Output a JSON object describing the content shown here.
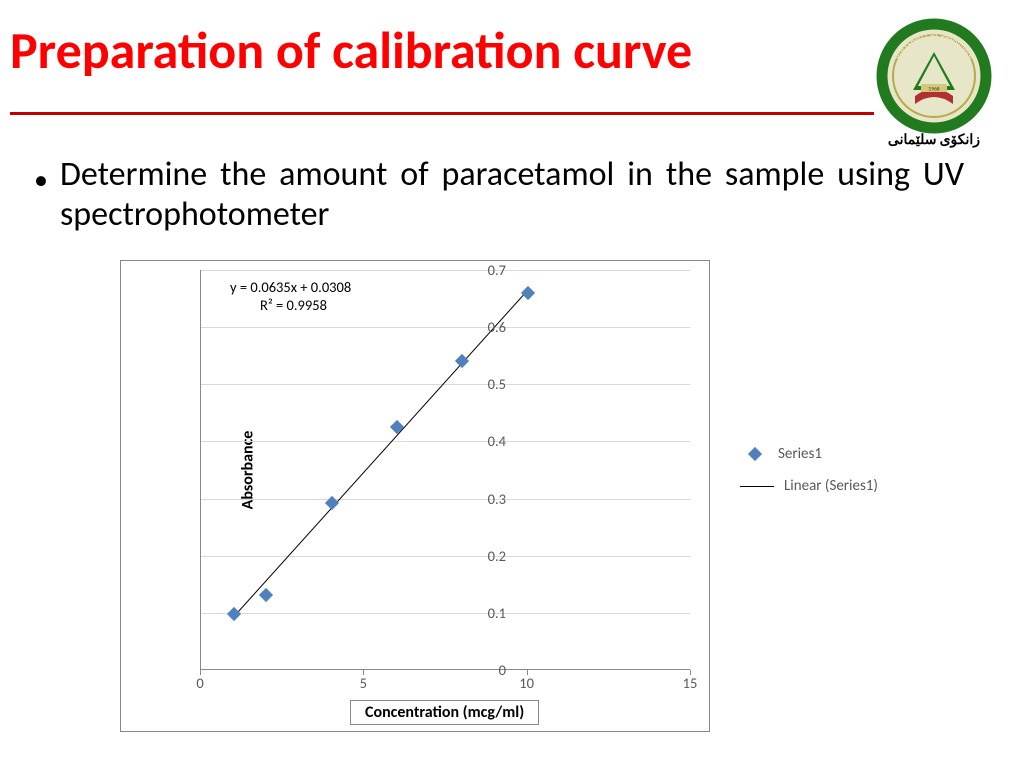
{
  "title": "Preparation of calibration curve",
  "title_color": "#ff0000",
  "hr_color": "#c00000",
  "logo": {
    "ring_top_text": "UNIVERSITY OF SULAIMANI",
    "ring_bottom_text": "زانکۆی سلێمانی",
    "ring_color": "#227a1f",
    "inner_bg": "#e8e6c8",
    "accent": "#b03030",
    "year": "1968"
  },
  "bullet_text": "Determine the amount of paracetamol in the sample using UV spectrophotometer",
  "chart": {
    "type": "scatter",
    "equation": "y = 0.0635x + 0.0308",
    "r_squared": "R² = 0.9958",
    "x_label": "Concentration (mcg/ml)",
    "y_label": "Absorbance",
    "xlim": [
      0,
      15
    ],
    "ylim": [
      0,
      0.7
    ],
    "x_ticks": [
      0,
      5,
      10,
      15
    ],
    "y_ticks": [
      0,
      0.1,
      0.2,
      0.3,
      0.4,
      0.5,
      0.6,
      0.7
    ],
    "grid_color": "#d9d9d9",
    "axis_color": "#888888",
    "tick_text_color": "#595959",
    "marker_color": "#4f81bd",
    "marker_shape": "diamond",
    "marker_size": 10,
    "trendline_color": "#000000",
    "fit": {
      "slope": 0.0635,
      "intercept": 0.0308
    },
    "series": {
      "name": "Series1",
      "points": [
        {
          "x": 1,
          "y": 0.098
        },
        {
          "x": 2,
          "y": 0.132
        },
        {
          "x": 4,
          "y": 0.293
        },
        {
          "x": 6,
          "y": 0.425
        },
        {
          "x": 8,
          "y": 0.54
        },
        {
          "x": 10,
          "y": 0.66
        }
      ]
    },
    "legend": {
      "series_label": "Series1",
      "trend_label": "Linear (Series1)"
    }
  }
}
